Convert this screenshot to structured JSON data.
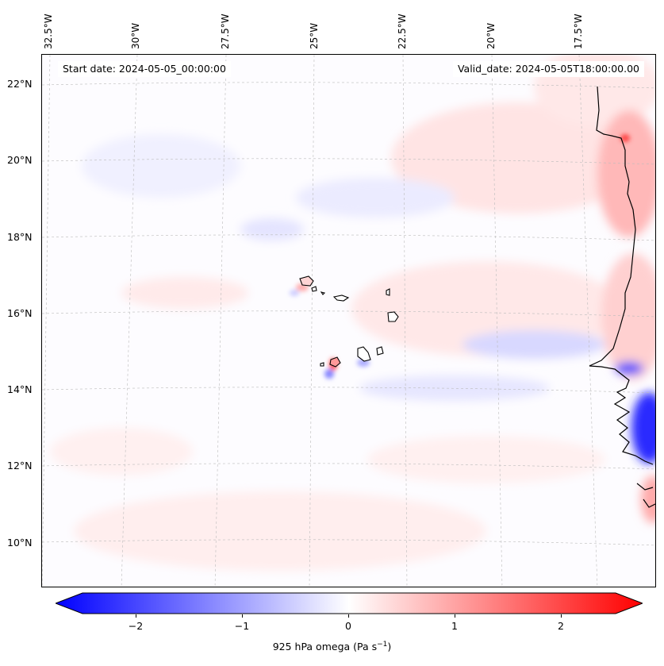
{
  "map": {
    "longitude_labels": [
      "32.5°W",
      "30°W",
      "27.5°W",
      "25°W",
      "22.5°W",
      "20°W",
      "17.5°W"
    ],
    "latitude_labels": [
      "22°N",
      "20°N",
      "18°N",
      "16°N",
      "14°N",
      "12°N",
      "10°N"
    ],
    "start_date_text": "Start date: 2024-05-05_00:00:00",
    "valid_date_text": "Valid_date: 2024-05-05T18:00:00.00",
    "colors": {
      "positive": "#ff0000",
      "negative": "#0000ff",
      "neutral": "#ffffff",
      "coast": "#000000"
    }
  },
  "colorbar": {
    "ticks": [
      "−2",
      "−1",
      "0",
      "1",
      "2"
    ],
    "tick_values": [
      -2,
      -1,
      0,
      1,
      2
    ],
    "range": [
      -2.7,
      2.7
    ],
    "label": "925 hPa omega (Pa s",
    "label_exponent": "−1",
    "label_end": ")"
  }
}
